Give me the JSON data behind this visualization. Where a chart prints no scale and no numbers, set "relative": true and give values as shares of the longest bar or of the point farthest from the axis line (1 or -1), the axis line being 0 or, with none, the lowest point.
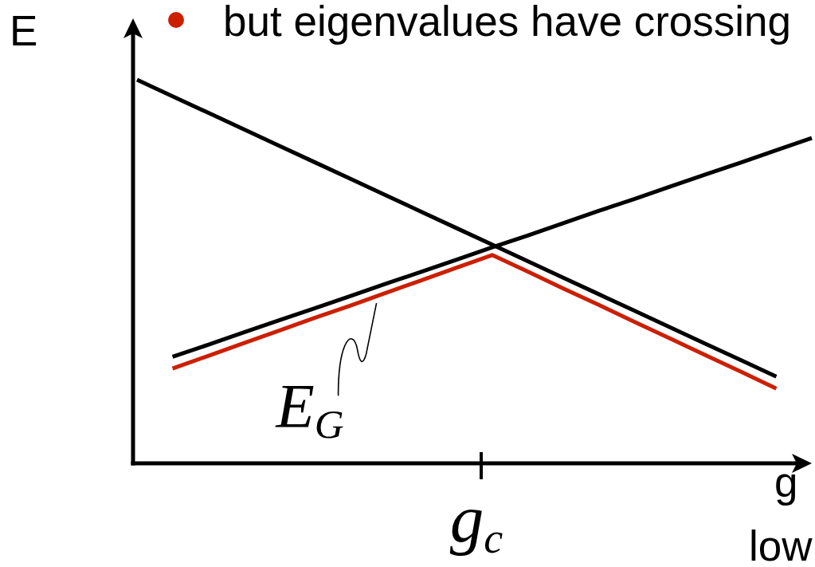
{
  "chart_data": {
    "type": "line",
    "relative": true,
    "ylabel": "E",
    "xlabel": "g",
    "annotations": [
      "but eigenvalues have crossing",
      "g$_{c}$",
      "low"
    ],
    "marker": "none",
    "categories": [
      null,
      null,
      null,
      null,
      null,
      null,
      null,
      null,
      null,
      null,
      null,
      null,
      null,
      null,
      null,
      null,
      null,
      null,
      null,
      null
    ],
    "series": [
      {
        "color": "#000000",
        "values": [
          1.0,
          0.957,
          0.914,
          0.871,
          0.828,
          0.785,
          0.742,
          0.699,
          0.656,
          0.613,
          0.57,
          0.527,
          0.484,
          0.441,
          0.398,
          0.355,
          0.312,
          0.269,
          0.226,
          null
        ]
      },
      {
        "color": "#000000",
        "values": [
          null,
          0.278,
          0.309,
          0.341,
          0.373,
          0.404,
          0.436,
          0.468,
          0.499,
          0.531,
          0.563,
          0.594,
          0.626,
          0.658,
          0.689,
          0.721,
          0.753,
          0.784,
          0.816,
          0.848
        ]
      },
      {
        "name": "E$_{G}$",
        "color": "#cc1f00",
        "values": [
          null,
          0.247,
          0.28,
          0.313,
          0.346,
          0.379,
          0.411,
          0.444,
          0.477,
          0.51,
          0.543,
          0.5,
          0.456,
          0.413,
          0.369,
          0.326,
          0.282,
          0.239,
          0.195,
          null
        ]
      }
    ]
  }
}
